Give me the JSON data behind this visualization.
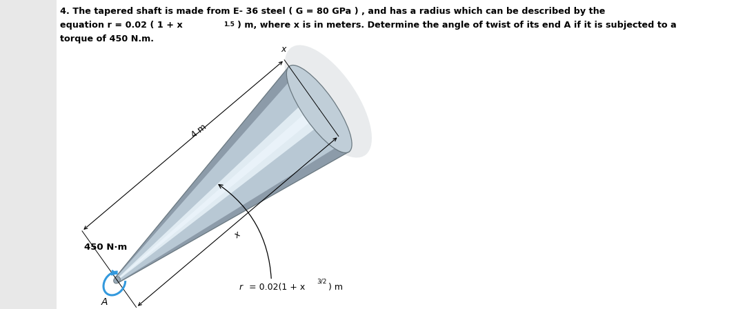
{
  "background_color": "#ffffff",
  "bg_side": "#e8e8e8",
  "title_line1": "4. The tapered shaft is made from E- 36 steel ( G = 80 GPa ) , and has a radius which can be described by the",
  "title_line2a": "equation r = 0.02 ( 1 + x",
  "title_sup": "1.5",
  "title_line2b": ") m, where x is in meters. Determine the angle of twist of its end A if it is subjected to a",
  "title_line3": "torque of 450 N.m.",
  "label_r_a": "r",
  "label_r_b": " = 0.02(1 + x",
  "label_r_sup": "3/2",
  "label_r_c": ") m",
  "label_4m": "4 m",
  "label_torque": "450 N·m",
  "label_A": "A",
  "label_x": "x",
  "shaft_base": "#b8c8d4",
  "shaft_light": "#dce8f0",
  "shaft_dark": "#7a8898",
  "shaft_highlight": "#e8f2f8",
  "shaft_edge": "#6a7880",
  "endcap_color": "#c0ced8",
  "shadow_color": "#c0c8cc",
  "torque_arc_color": "#3399dd"
}
